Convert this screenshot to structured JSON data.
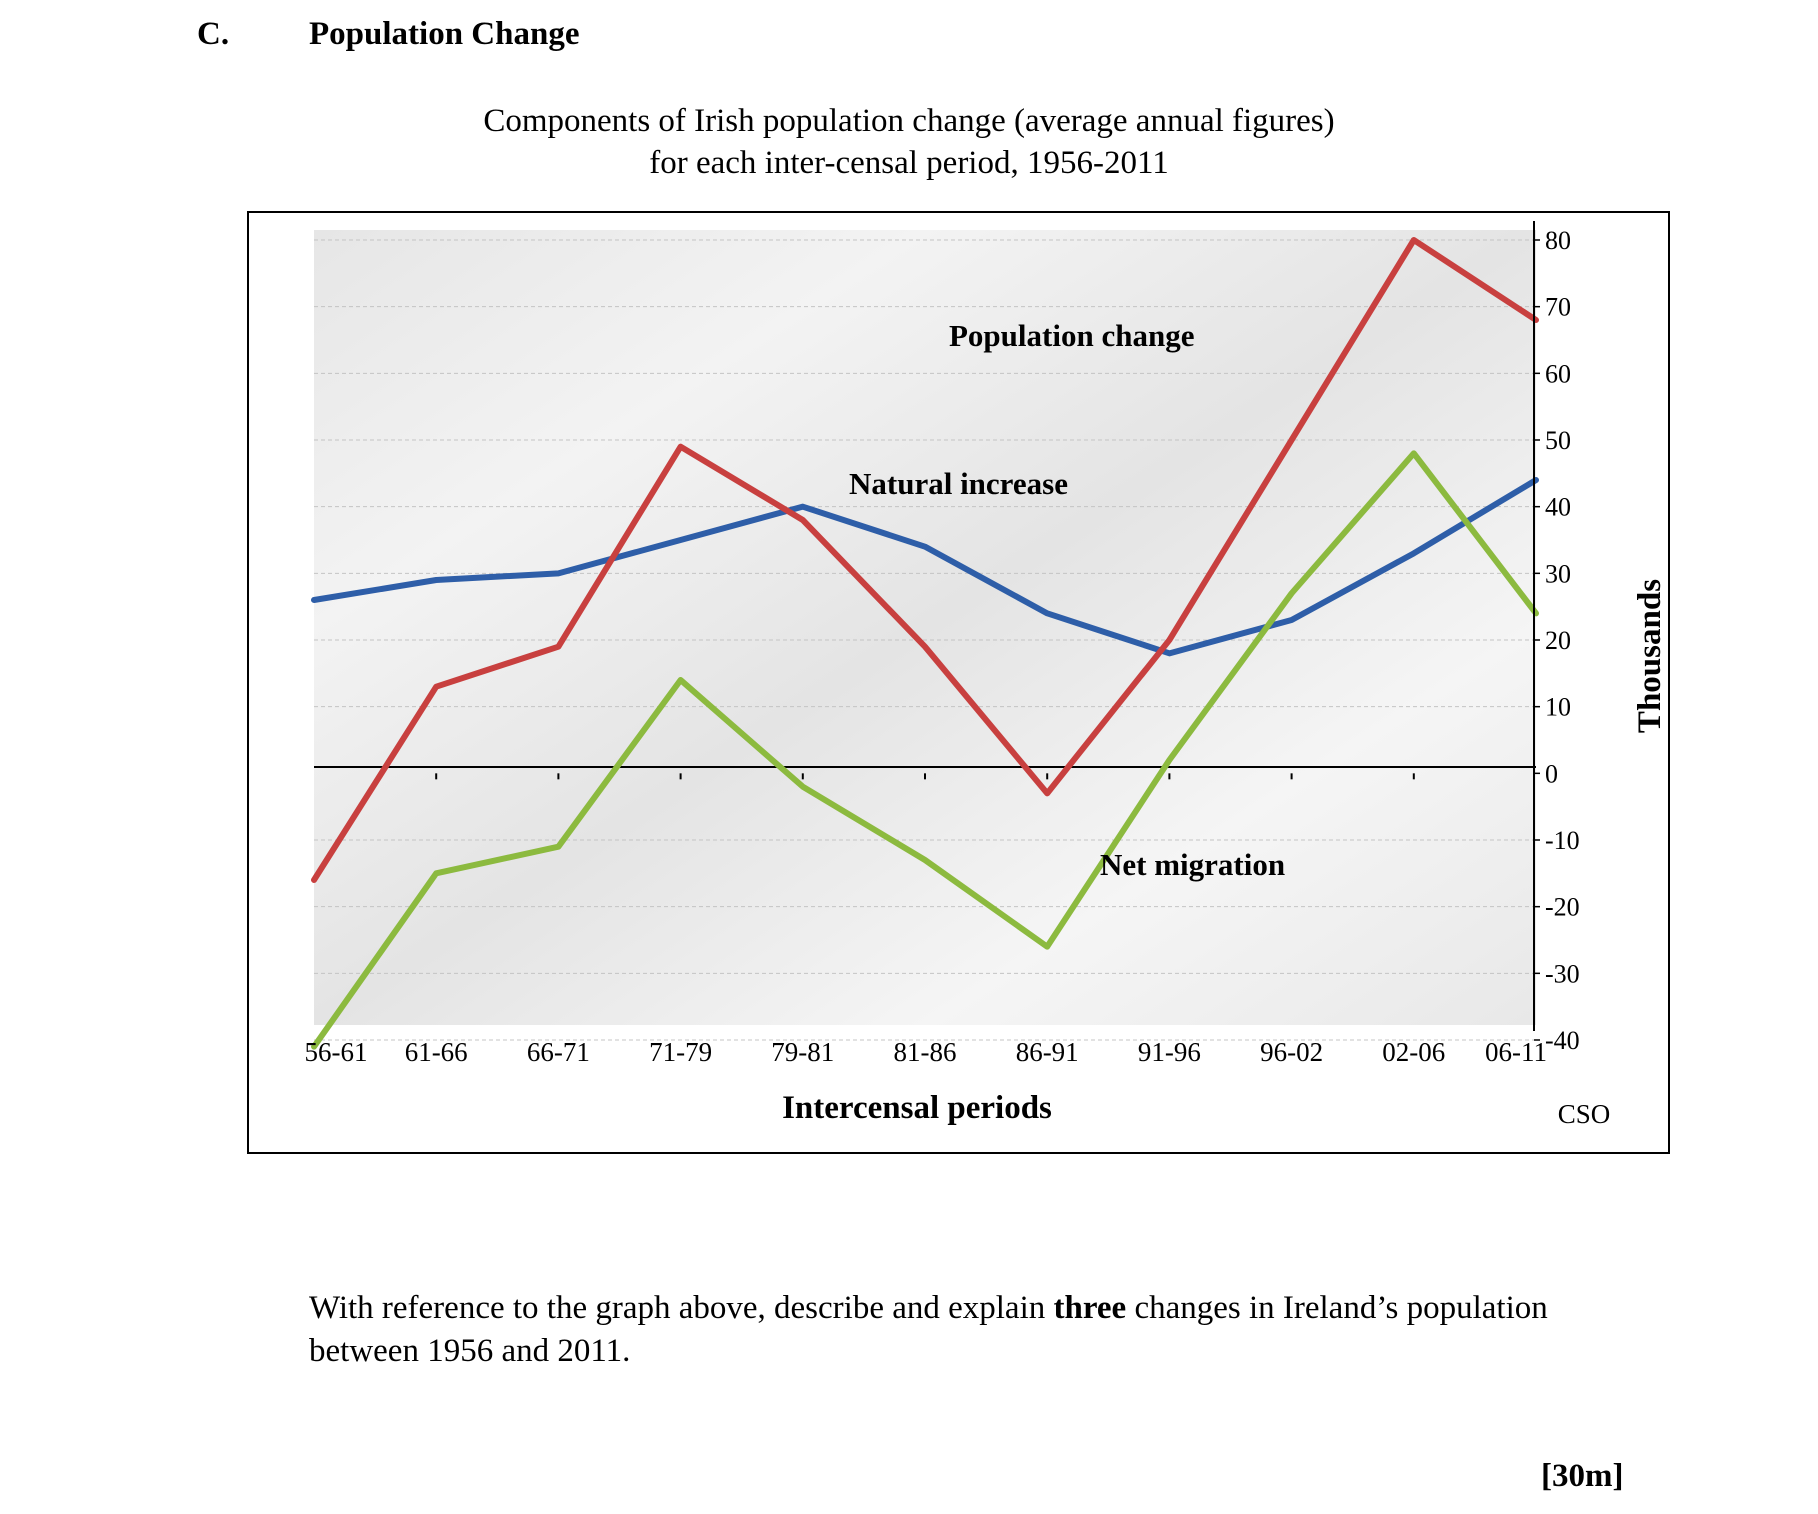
{
  "section": {
    "letter": "C.",
    "title": "Population Change"
  },
  "question": {
    "before": "With reference to the graph above, describe and explain ",
    "emphasis": "three",
    "after": " changes in Ireland’s population between 1956 and 2011."
  },
  "marks": "[30m]",
  "chart_data": {
    "type": "line",
    "title_line1": "Components of Irish population change (average annual figures)",
    "title_line2": "for each inter-censal period, 1956-2011",
    "xlabel": "Intercensal periods",
    "ylabel": "Thousands",
    "source": "CSO",
    "categories": [
      "56-61",
      "61-66",
      "66-71",
      "71-79",
      "79-81",
      "81-86",
      "86-91",
      "91-96",
      "96-02",
      "02-06",
      "06-11"
    ],
    "ylim": [
      -40,
      80
    ],
    "yticks": [
      80,
      70,
      60,
      50,
      40,
      30,
      20,
      10,
      0,
      -10,
      -20,
      -30,
      -40
    ],
    "grid": true,
    "series": [
      {
        "name": "Natural increase",
        "color": "#2e5ea8",
        "values": [
          26,
          29,
          30,
          35,
          40,
          34,
          24,
          18,
          23,
          33,
          44
        ]
      },
      {
        "name": "Population change",
        "color": "#c8403f",
        "values": [
          -16,
          13,
          19,
          49,
          38,
          19,
          -3,
          20,
          50,
          80,
          68
        ]
      },
      {
        "name": "Net migration",
        "color": "#8cba3f",
        "values": [
          -41,
          -15,
          -11,
          14,
          -2,
          -13,
          -26,
          2,
          27,
          48,
          24
        ]
      }
    ]
  }
}
